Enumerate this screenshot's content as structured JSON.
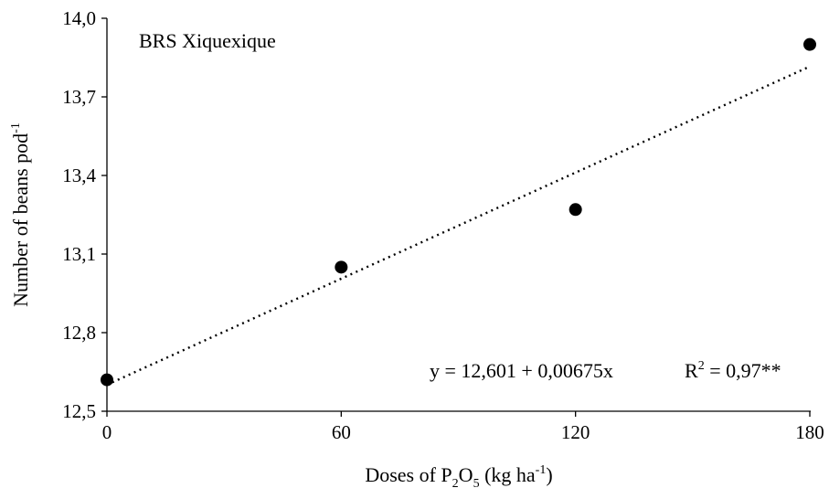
{
  "chart_data": {
    "type": "scatter",
    "title": "BRS Xiquexique",
    "xlabel": {
      "prefix": "Doses of P",
      "sub1": "2",
      "mid": "O",
      "sub2": "5",
      "suffix": " (kg ha",
      "sup": "-1",
      "end": ")"
    },
    "ylabel": {
      "text": "Number of beans pod",
      "sup": "-1"
    },
    "x": [
      0,
      60,
      120,
      180
    ],
    "y": [
      12.62,
      13.05,
      13.27,
      13.9
    ],
    "xlim": [
      0,
      180
    ],
    "ylim": [
      12.5,
      14.0
    ],
    "xticks": [
      0,
      60,
      120,
      180
    ],
    "xtick_labels": [
      "0",
      "60",
      "120",
      "180"
    ],
    "yticks": [
      12.5,
      12.8,
      13.1,
      13.4,
      13.7,
      14.0
    ],
    "ytick_labels": [
      "12,5",
      "12,8",
      "13,1",
      "13,4",
      "13,7",
      "14,0"
    ],
    "trendline": {
      "type": "linear",
      "intercept": 12.601,
      "slope": 0.00675,
      "style": "dotted"
    },
    "equation": "y = 12,601 + 0,00675x",
    "r2": {
      "label": "R",
      "sup": "2",
      "value": " = 0,97**"
    },
    "grid": false,
    "marker_color": "#000000"
  }
}
